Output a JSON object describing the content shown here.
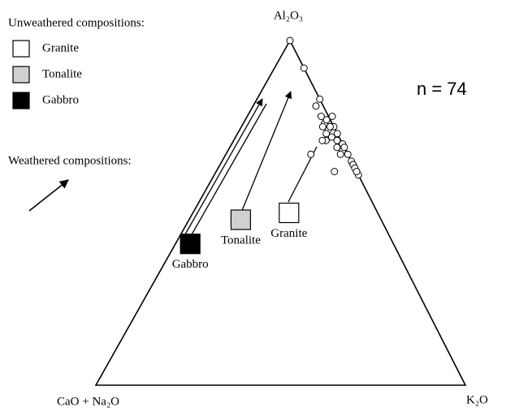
{
  "chart_data": {
    "type": "ternary",
    "apex_labels": {
      "top": "Al₂O₃",
      "left": "CaO + Na₂O",
      "right": "K₂O"
    },
    "annotation": "n = 74",
    "legend_title": "Unweathered compositions:",
    "weathered_label": "Weathered compositions:",
    "compositions": [
      {
        "name": "Granite",
        "color": "#ffffff",
        "a": 50,
        "k": 26
      },
      {
        "name": "Tonalite",
        "color": "#d0d0d0",
        "a": 48,
        "k": 14
      },
      {
        "name": "Gabbro",
        "color": "#000000",
        "a": 41,
        "k": 4
      }
    ],
    "samples": {
      "a": [
        100,
        92,
        83,
        81,
        78,
        76,
        77,
        78,
        75,
        74,
        75,
        73,
        72,
        71,
        71,
        71,
        70,
        69,
        68,
        67,
        67,
        67,
        65,
        64,
        64,
        62,
        63,
        61,
        62,
        62,
        69,
        73,
        75
      ],
      "k": [
        0,
        8,
        17,
        17,
        20,
        22,
        22,
        23,
        22,
        24,
        25,
        27,
        26,
        25,
        24,
        28,
        30,
        29,
        31,
        33,
        31,
        23,
        35,
        36,
        36,
        38,
        37,
        39,
        38,
        32,
        31,
        24,
        24
      ]
    }
  }
}
